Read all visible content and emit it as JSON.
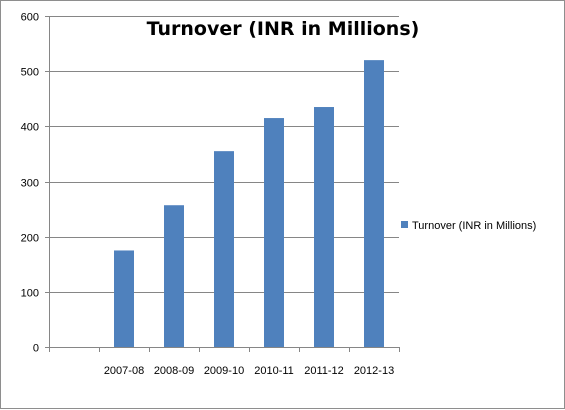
{
  "chart_data": {
    "type": "bar",
    "title": "Turnover (INR in Millions)",
    "xlabel": "",
    "ylabel": "",
    "categories": [
      "",
      "2007-08",
      "2008-09",
      "2009-10",
      "2010-11",
      "2011-12",
      "2012-13"
    ],
    "series": [
      {
        "name": "Turnover (INR in Millions)",
        "values": [
          null,
          175,
          257,
          355,
          415,
          435,
          520
        ],
        "color": "#4f81bd"
      }
    ],
    "ylim": [
      0,
      600
    ],
    "yticks": [
      0,
      100,
      200,
      300,
      400,
      500,
      600
    ],
    "grid": true,
    "legend": "right"
  }
}
